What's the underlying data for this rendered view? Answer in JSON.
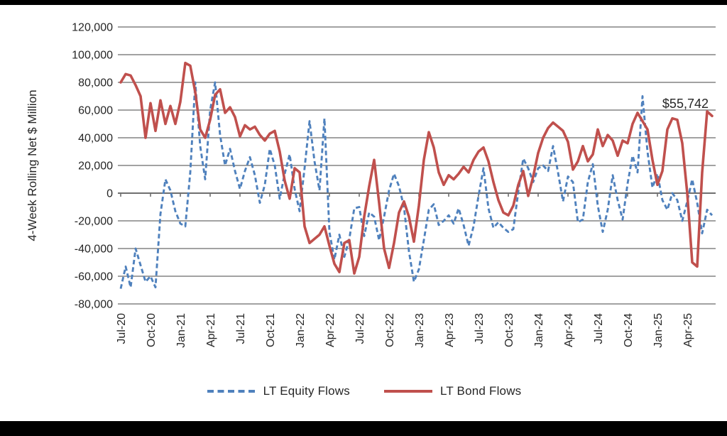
{
  "colors": {
    "background": "#ffffff",
    "letterbox": "#000000",
    "gridline": "#848484",
    "zero_axis": "#6f6f6f",
    "text": "#262626",
    "equity_blue": "#4F81BD",
    "bond_red": "#C0504D"
  },
  "legend": {
    "equity_label": "LT Equity Flows",
    "bond_label": "LT Bond Flows"
  },
  "chart_data": {
    "type": "line",
    "title": "",
    "xlabel": "",
    "ylabel": "4-Week Rolling Net $ Million",
    "ylim": [
      -80000,
      120000
    ],
    "ytick_step": 20000,
    "grid": true,
    "legend_position": "bottom",
    "y_tick_labels": [
      "120,000",
      "100,000",
      "80,000",
      "60,000",
      "40,000",
      "20,000",
      "0",
      "-20,000",
      "-40,000",
      "-60,000",
      "-80,000"
    ],
    "x_tick_labels": [
      "Jul-20",
      "Oct-20",
      "Jan-21",
      "Apr-21",
      "Jul-21",
      "Oct-21",
      "Jan-22",
      "Apr-22",
      "Jul-22",
      "Oct-22",
      "Jan-23",
      "Apr-23",
      "Jul-23",
      "Oct-23",
      "Jan-24",
      "Apr-24",
      "Jul-24",
      "Oct-24",
      "Jan-25",
      "Apr-25"
    ],
    "samples_per_tick": 6,
    "x_note": "semi-monthly estimated values, Jul-2020 through late May-2025, net $ million",
    "annotation": {
      "label": "$55,742",
      "series": "LT Bond Flows",
      "value": 55742
    },
    "series": [
      {
        "name": "LT Equity Flows",
        "color": "#4F81BD",
        "dash": true,
        "values": [
          -69000,
          -53000,
          -68000,
          -40000,
          -52000,
          -64000,
          -60000,
          -68000,
          -15000,
          10000,
          2000,
          -13000,
          -22000,
          -24000,
          15000,
          80000,
          34000,
          10000,
          60000,
          80000,
          42000,
          20000,
          32000,
          16000,
          3000,
          16000,
          26000,
          13000,
          -7000,
          6000,
          32000,
          20000,
          -4000,
          14000,
          28000,
          3000,
          -13000,
          18000,
          52000,
          23000,
          2000,
          54000,
          -28000,
          -48000,
          -30000,
          -46000,
          -33000,
          -11000,
          -10000,
          -31000,
          -14000,
          -17000,
          -34000,
          -17000,
          2000,
          14000,
          5000,
          -10000,
          -42000,
          -64000,
          -55000,
          -34000,
          -12000,
          -8000,
          -23000,
          -20000,
          -16000,
          -22000,
          -11000,
          -23000,
          -38000,
          -24000,
          -2000,
          18000,
          -11000,
          -25000,
          -21000,
          -25000,
          -28000,
          -26000,
          1000,
          25000,
          18000,
          8000,
          18000,
          20000,
          16000,
          34000,
          15000,
          -6000,
          12000,
          8000,
          -21000,
          -19000,
          8000,
          21000,
          -9000,
          -28000,
          -12000,
          13000,
          -5000,
          -19000,
          7000,
          27000,
          15000,
          70000,
          30000,
          4000,
          14000,
          -5000,
          -12000,
          0,
          -5000,
          -20000,
          -6000,
          10000,
          -7000,
          -29000,
          -12000,
          -16000
        ]
      },
      {
        "name": "LT Bond Flows",
        "color": "#C0504D",
        "dash": false,
        "values": [
          80000,
          86000,
          85000,
          78000,
          70000,
          40000,
          65000,
          45000,
          67000,
          50000,
          63000,
          50000,
          66000,
          94000,
          92000,
          73000,
          46000,
          40000,
          53000,
          71000,
          75000,
          58000,
          62000,
          55000,
          41000,
          49000,
          46000,
          48000,
          42000,
          38000,
          43000,
          45000,
          30000,
          9000,
          -4000,
          18000,
          15000,
          -24000,
          -36000,
          -33000,
          -30000,
          -24000,
          -38000,
          -51000,
          -57000,
          -36000,
          -34000,
          -58000,
          -46000,
          -17000,
          5000,
          24000,
          -7000,
          -40000,
          -54000,
          -36000,
          -14000,
          -6000,
          -17000,
          -35000,
          -9000,
          24000,
          44000,
          33000,
          15000,
          6000,
          13000,
          10000,
          14000,
          19000,
          15000,
          24000,
          30000,
          33000,
          23000,
          8000,
          -5000,
          -14000,
          -16000,
          -9000,
          6000,
          16000,
          -2000,
          12000,
          29000,
          40000,
          47000,
          51000,
          48000,
          45000,
          37000,
          17000,
          23000,
          34000,
          23000,
          28000,
          46000,
          34000,
          42000,
          38000,
          27000,
          38000,
          36000,
          50000,
          58000,
          52000,
          46000,
          24000,
          6000,
          16000,
          46000,
          54000,
          53000,
          36000,
          0,
          -50000,
          -53000,
          15000,
          59000,
          55742
        ]
      }
    ]
  }
}
